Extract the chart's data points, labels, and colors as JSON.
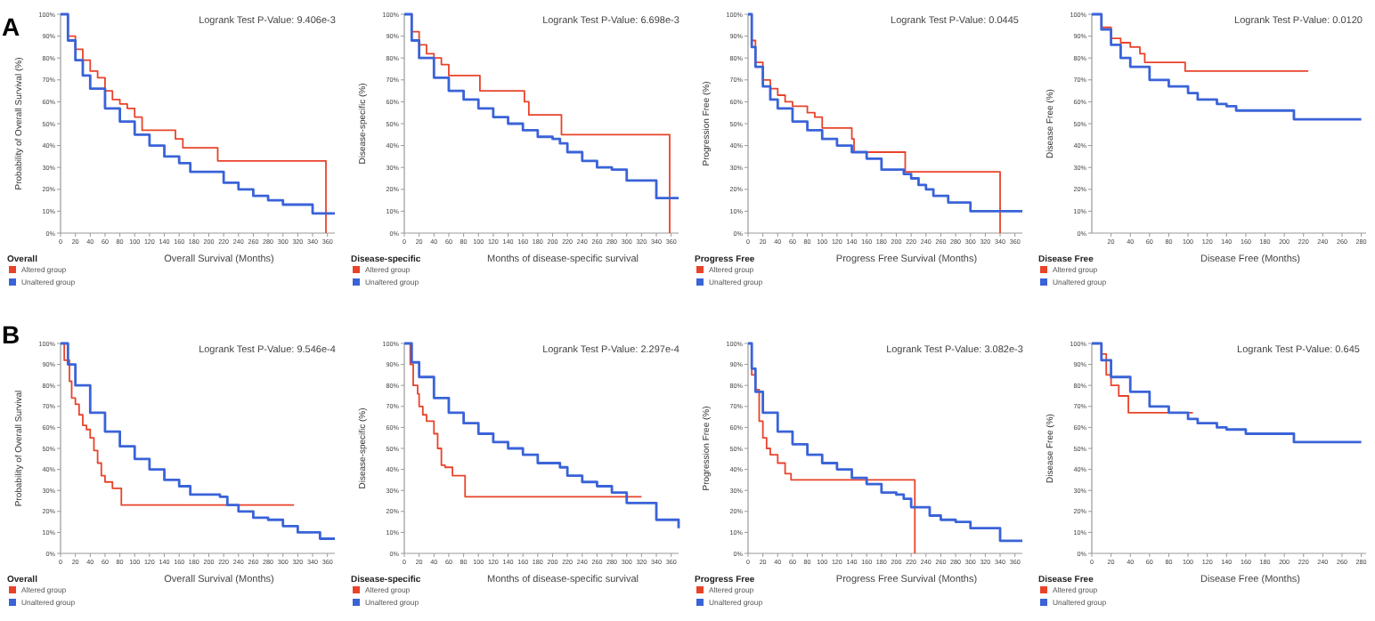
{
  "chart_data": [
    {
      "type": "step",
      "xlabel": "Overall Survival (Months)",
      "ylabel": "Probability of Overall Survival (%)",
      "legend_title": "Overall",
      "legend": "bottom left",
      "grid": false,
      "annotations": [
        "Logrank Test P-Value: 9.406e-3",
        "A"
      ],
      "xlim": [
        0,
        370
      ],
      "xticks": [
        0,
        20,
        40,
        60,
        80,
        100,
        120,
        140,
        160,
        180,
        200,
        220,
        240,
        260,
        280,
        300,
        320,
        340,
        360
      ],
      "ylim": [
        0,
        100
      ],
      "yticks": [
        {
          "value": 0,
          "label": "0%"
        },
        {
          "value": 10,
          "label": "10%"
        },
        {
          "value": 20,
          "label": "20%"
        },
        {
          "value": 30,
          "label": "30%"
        },
        {
          "value": 40,
          "label": "40%"
        },
        {
          "value": 50,
          "label": "50%"
        },
        {
          "value": 60,
          "label": "60%"
        },
        {
          "value": 70,
          "label": "70%"
        },
        {
          "value": 80,
          "label": "80%"
        },
        {
          "value": 90,
          "label": "90%"
        },
        {
          "value": 100,
          "label": "100%"
        }
      ],
      "series": [
        {
          "name": "Altered group",
          "color": "#e8432a",
          "x": [
            0,
            10,
            20,
            30,
            40,
            50,
            60,
            70,
            80,
            90,
            100,
            110,
            150,
            155,
            165,
            210,
            212,
            250,
            358,
            358
          ],
          "values": [
            100,
            90,
            84,
            79,
            74,
            71,
            65,
            61,
            59,
            57,
            53,
            47,
            47,
            43,
            39,
            39,
            33,
            33,
            33,
            0
          ]
        },
        {
          "name": "Unaltered group",
          "color": "#3a63d8",
          "x": [
            0,
            10,
            20,
            30,
            40,
            60,
            80,
            100,
            120,
            140,
            160,
            175,
            200,
            220,
            240,
            260,
            280,
            300,
            320,
            340,
            370
          ],
          "values": [
            100,
            88,
            79,
            72,
            66,
            57,
            51,
            45,
            40,
            35,
            32,
            28,
            28,
            23,
            20,
            17,
            15,
            13,
            13,
            9,
            9
          ]
        }
      ]
    },
    {
      "type": "step",
      "xlabel": "Months of disease-specific survival",
      "ylabel": "Disease-specific (%)",
      "legend_title": "Disease-specific",
      "legend": "bottom left",
      "grid": false,
      "annotations": [
        "Logrank Test P-Value: 6.698e-3"
      ],
      "xlim": [
        0,
        370
      ],
      "xticks": [
        0,
        20,
        40,
        60,
        80,
        100,
        120,
        140,
        160,
        180,
        200,
        220,
        240,
        260,
        280,
        300,
        320,
        340,
        360
      ],
      "ylim": [
        0,
        100
      ],
      "yticks": [
        {
          "value": 0,
          "label": "0%"
        },
        {
          "value": 10,
          "label": "10%"
        },
        {
          "value": 20,
          "label": "20%"
        },
        {
          "value": 30,
          "label": "30%"
        },
        {
          "value": 40,
          "label": "40%"
        },
        {
          "value": 50,
          "label": "50%"
        },
        {
          "value": 60,
          "label": "60%"
        },
        {
          "value": 70,
          "label": "70%"
        },
        {
          "value": 80,
          "label": "80%"
        },
        {
          "value": 90,
          "label": "90%"
        },
        {
          "value": 100,
          "label": "100%"
        }
      ],
      "series": [
        {
          "name": "Altered group",
          "color": "#e8432a",
          "x": [
            0,
            10,
            20,
            30,
            40,
            50,
            60,
            100,
            102,
            160,
            162,
            168,
            210,
            212,
            358,
            358
          ],
          "values": [
            100,
            92,
            86,
            82,
            80,
            77,
            72,
            72,
            65,
            65,
            60,
            54,
            54,
            45,
            45,
            0
          ]
        },
        {
          "name": "Unaltered group",
          "color": "#3a63d8",
          "x": [
            0,
            10,
            20,
            40,
            60,
            80,
            100,
            120,
            140,
            160,
            180,
            200,
            210,
            220,
            240,
            260,
            280,
            300,
            340,
            370
          ],
          "values": [
            100,
            88,
            80,
            71,
            65,
            61,
            57,
            53,
            50,
            47,
            44,
            43,
            41,
            37,
            33,
            30,
            29,
            24,
            16,
            16
          ]
        }
      ]
    },
    {
      "type": "step",
      "xlabel": "Progress Free Survival (Months)",
      "ylabel": "Progression Free (%)",
      "legend_title": "Progress Free",
      "legend": "bottom left",
      "grid": false,
      "annotations": [
        "Logrank Test P-Value: 0.0445"
      ],
      "xlim": [
        0,
        370
      ],
      "xticks": [
        0,
        20,
        40,
        60,
        80,
        100,
        120,
        140,
        160,
        180,
        200,
        220,
        240,
        260,
        280,
        300,
        320,
        340,
        360
      ],
      "ylim": [
        0,
        100
      ],
      "yticks": [
        {
          "value": 0,
          "label": "0%"
        },
        {
          "value": 10,
          "label": "10%"
        },
        {
          "value": 20,
          "label": "20%"
        },
        {
          "value": 30,
          "label": "30%"
        },
        {
          "value": 40,
          "label": "40%"
        },
        {
          "value": 50,
          "label": "50%"
        },
        {
          "value": 60,
          "label": "60%"
        },
        {
          "value": 70,
          "label": "70%"
        },
        {
          "value": 80,
          "label": "80%"
        },
        {
          "value": 90,
          "label": "90%"
        },
        {
          "value": 100,
          "label": "100%"
        }
      ],
      "series": [
        {
          "name": "Altered group",
          "color": "#e8432a",
          "x": [
            0,
            5,
            10,
            20,
            30,
            40,
            50,
            60,
            80,
            90,
            100,
            130,
            140,
            143,
            210,
            212,
            340,
            340
          ],
          "values": [
            100,
            88,
            78,
            70,
            66,
            63,
            60,
            58,
            55,
            53,
            48,
            48,
            43,
            37,
            37,
            28,
            28,
            0
          ]
        },
        {
          "name": "Unaltered group",
          "color": "#3a63d8",
          "x": [
            0,
            5,
            10,
            20,
            30,
            40,
            60,
            80,
            100,
            120,
            140,
            160,
            180,
            200,
            210,
            220,
            230,
            240,
            250,
            270,
            290,
            300,
            370
          ],
          "values": [
            100,
            85,
            76,
            67,
            61,
            57,
            51,
            47,
            43,
            40,
            37,
            34,
            29,
            29,
            27,
            25,
            22,
            20,
            17,
            14,
            14,
            10,
            10
          ]
        }
      ]
    },
    {
      "type": "step",
      "xlabel": "Disease Free (Months)",
      "ylabel": "Disease Free (%)",
      "legend_title": "Disease Free",
      "legend": "bottom left",
      "grid": false,
      "annotations": [
        "Logrank Test P-Value: 0.0120"
      ],
      "xlim": [
        0,
        285
      ],
      "xticks": [
        20,
        40,
        60,
        80,
        100,
        120,
        140,
        160,
        180,
        200,
        220,
        240,
        260,
        280
      ],
      "ylim": [
        0,
        100
      ],
      "yticks": [
        {
          "value": 0,
          "label": "0%"
        },
        {
          "value": 10,
          "label": "10%"
        },
        {
          "value": 20,
          "label": "20%"
        },
        {
          "value": 30,
          "label": "30%"
        },
        {
          "value": 40,
          "label": "40%"
        },
        {
          "value": 50,
          "label": "50%"
        },
        {
          "value": 60,
          "label": "60%"
        },
        {
          "value": 70,
          "label": "70%"
        },
        {
          "value": 80,
          "label": "80%"
        },
        {
          "value": 90,
          "label": "90%"
        },
        {
          "value": 100,
          "label": "100%"
        }
      ],
      "series": [
        {
          "name": "Altered group",
          "color": "#e8432a",
          "x": [
            0,
            10,
            20,
            30,
            40,
            50,
            55,
            95,
            97,
            225
          ],
          "values": [
            100,
            94,
            89,
            87,
            85,
            82,
            78,
            78,
            74,
            74
          ]
        },
        {
          "name": "Unaltered group",
          "color": "#3a63d8",
          "x": [
            0,
            10,
            20,
            30,
            40,
            60,
            80,
            100,
            110,
            130,
            140,
            150,
            200,
            210,
            280
          ],
          "values": [
            100,
            93,
            86,
            80,
            76,
            70,
            67,
            64,
            61,
            59,
            58,
            56,
            56,
            52,
            52
          ]
        }
      ]
    },
    {
      "type": "step",
      "xlabel": "Overall Survival (Months)",
      "ylabel": "Probability of Overall Survival",
      "legend_title": "Overall",
      "legend": "bottom left",
      "grid": false,
      "annotations": [
        "Logrank Test P-Value: 9.546e-4",
        "B"
      ],
      "xlim": [
        0,
        370
      ],
      "xticks": [
        0,
        20,
        40,
        60,
        80,
        100,
        120,
        140,
        160,
        180,
        200,
        220,
        240,
        260,
        280,
        300,
        320,
        340,
        360
      ],
      "ylim": [
        0,
        100
      ],
      "yticks": [
        {
          "value": 0,
          "label": "0%"
        },
        {
          "value": 10,
          "label": "10%"
        },
        {
          "value": 20,
          "label": "20%"
        },
        {
          "value": 30,
          "label": "30%"
        },
        {
          "value": 40,
          "label": "40%"
        },
        {
          "value": 50,
          "label": "50%"
        },
        {
          "value": 60,
          "label": "60%"
        },
        {
          "value": 70,
          "label": "70%"
        },
        {
          "value": 80,
          "label": "80%"
        },
        {
          "value": 90,
          "label": "90%"
        },
        {
          "value": 100,
          "label": "100%"
        }
      ],
      "series": [
        {
          "name": "Altered group",
          "color": "#e8432a",
          "x": [
            0,
            5,
            12,
            15,
            20,
            25,
            30,
            35,
            40,
            45,
            50,
            55,
            60,
            70,
            80,
            82,
            315
          ],
          "values": [
            100,
            92,
            82,
            74,
            71,
            66,
            61,
            59,
            55,
            49,
            43,
            37,
            34,
            31,
            31,
            23,
            23
          ]
        },
        {
          "name": "Unaltered group",
          "color": "#3a63d8",
          "x": [
            0,
            10,
            20,
            40,
            60,
            80,
            100,
            120,
            140,
            160,
            175,
            200,
            215,
            225,
            240,
            260,
            280,
            300,
            320,
            350,
            370
          ],
          "values": [
            100,
            90,
            80,
            67,
            58,
            51,
            45,
            40,
            35,
            32,
            28,
            28,
            27,
            23,
            20,
            17,
            16,
            13,
            10,
            7,
            7
          ]
        }
      ]
    },
    {
      "type": "step",
      "xlabel": "Months of disease-specific survival",
      "ylabel": "Disease-specific (%)",
      "legend_title": "Disease-specific",
      "legend": "bottom left",
      "grid": false,
      "annotations": [
        "Logrank Test P-Value: 2.297e-4"
      ],
      "xlim": [
        0,
        370
      ],
      "xticks": [
        0,
        20,
        40,
        60,
        80,
        100,
        120,
        140,
        160,
        180,
        200,
        220,
        240,
        260,
        280,
        300,
        320,
        340,
        360
      ],
      "ylim": [
        0,
        100
      ],
      "yticks": [
        {
          "value": 0,
          "label": "0%"
        },
        {
          "value": 10,
          "label": "10%"
        },
        {
          "value": 20,
          "label": "20%"
        },
        {
          "value": 30,
          "label": "30%"
        },
        {
          "value": 40,
          "label": "40%"
        },
        {
          "value": 50,
          "label": "50%"
        },
        {
          "value": 60,
          "label": "60%"
        },
        {
          "value": 70,
          "label": "70%"
        },
        {
          "value": 80,
          "label": "80%"
        },
        {
          "value": 90,
          "label": "90%"
        },
        {
          "value": 100,
          "label": "100%"
        }
      ],
      "series": [
        {
          "name": "Altered group",
          "color": "#e8432a",
          "x": [
            0,
            8,
            12,
            18,
            20,
            25,
            30,
            40,
            45,
            50,
            55,
            65,
            80,
            82,
            320
          ],
          "values": [
            100,
            90,
            80,
            76,
            70,
            66,
            63,
            57,
            50,
            42,
            41,
            37,
            37,
            27,
            27
          ]
        },
        {
          "name": "Unaltered group",
          "color": "#3a63d8",
          "x": [
            0,
            10,
            20,
            40,
            60,
            80,
            100,
            120,
            140,
            160,
            180,
            200,
            210,
            220,
            240,
            260,
            280,
            300,
            340,
            370
          ],
          "values": [
            100,
            91,
            84,
            74,
            67,
            62,
            57,
            53,
            50,
            47,
            43,
            43,
            41,
            37,
            34,
            32,
            29,
            24,
            16,
            12
          ]
        }
      ]
    },
    {
      "type": "step",
      "xlabel": "Progress Free Survival (Months)",
      "ylabel": "Progression Free (%)",
      "legend_title": "Progress Free",
      "legend": "bottom left",
      "grid": false,
      "annotations": [
        "Logrank Test P-Value: 3.082e-3"
      ],
      "xlim": [
        0,
        370
      ],
      "xticks": [
        0,
        20,
        40,
        60,
        80,
        100,
        120,
        140,
        160,
        180,
        200,
        220,
        240,
        260,
        280,
        300,
        320,
        340,
        360
      ],
      "ylim": [
        0,
        100
      ],
      "yticks": [
        {
          "value": 0,
          "label": "0%"
        },
        {
          "value": 10,
          "label": "10%"
        },
        {
          "value": 20,
          "label": "20%"
        },
        {
          "value": 30,
          "label": "30%"
        },
        {
          "value": 40,
          "label": "40%"
        },
        {
          "value": 50,
          "label": "50%"
        },
        {
          "value": 60,
          "label": "60%"
        },
        {
          "value": 70,
          "label": "70%"
        },
        {
          "value": 80,
          "label": "80%"
        },
        {
          "value": 90,
          "label": "90%"
        },
        {
          "value": 100,
          "label": "100%"
        }
      ],
      "series": [
        {
          "name": "Altered group",
          "color": "#e8432a",
          "x": [
            0,
            5,
            10,
            15,
            20,
            25,
            30,
            40,
            50,
            58,
            225,
            225
          ],
          "values": [
            100,
            85,
            78,
            63,
            55,
            50,
            47,
            43,
            38,
            35,
            35,
            0
          ]
        },
        {
          "name": "Unaltered group",
          "color": "#3a63d8",
          "x": [
            0,
            5,
            10,
            20,
            40,
            60,
            80,
            100,
            120,
            140,
            160,
            180,
            200,
            210,
            220,
            240,
            245,
            260,
            280,
            300,
            340,
            370
          ],
          "values": [
            100,
            88,
            77,
            67,
            58,
            52,
            47,
            43,
            40,
            36,
            33,
            29,
            28,
            26,
            22,
            22,
            18,
            16,
            15,
            12,
            6,
            6
          ]
        }
      ]
    },
    {
      "type": "step",
      "xlabel": "Disease Free (Months)",
      "ylabel": "Disease Free (%)",
      "legend_title": "Disease Free",
      "legend": "bottom left",
      "grid": false,
      "annotations": [
        "Logrank Test P-Value: 0.645"
      ],
      "xlim": [
        0,
        285
      ],
      "xticks": [
        0,
        20,
        40,
        60,
        80,
        100,
        120,
        140,
        160,
        180,
        200,
        220,
        240,
        260,
        280
      ],
      "ylim": [
        0,
        100
      ],
      "yticks": [
        {
          "value": 0,
          "label": "0%"
        },
        {
          "value": 10,
          "label": "10%"
        },
        {
          "value": 20,
          "label": "20%"
        },
        {
          "value": 30,
          "label": "30%"
        },
        {
          "value": 40,
          "label": "40%"
        },
        {
          "value": 50,
          "label": "50%"
        },
        {
          "value": 60,
          "label": "60%"
        },
        {
          "value": 70,
          "label": "70%"
        },
        {
          "value": 80,
          "label": "80%"
        },
        {
          "value": 90,
          "label": "90%"
        },
        {
          "value": 100,
          "label": "100%"
        }
      ],
      "series": [
        {
          "name": "Altered group",
          "color": "#e8432a",
          "x": [
            0,
            10,
            15,
            20,
            28,
            38,
            105
          ],
          "values": [
            100,
            95,
            85,
            80,
            75,
            67,
            67
          ]
        },
        {
          "name": "Unaltered group",
          "color": "#3a63d8",
          "x": [
            0,
            10,
            20,
            40,
            60,
            80,
            100,
            110,
            130,
            140,
            160,
            200,
            210,
            280
          ],
          "values": [
            100,
            92,
            84,
            77,
            70,
            67,
            64,
            62,
            60,
            59,
            57,
            57,
            53,
            53
          ]
        }
      ]
    }
  ]
}
